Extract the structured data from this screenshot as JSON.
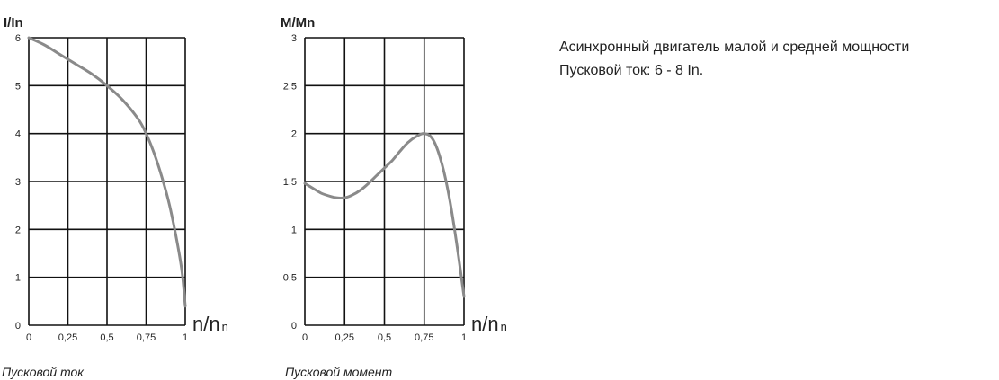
{
  "chart_data": [
    {
      "type": "line",
      "ylabel": "I/In",
      "xlabel_main": "n/n",
      "xlabel_sub": "n",
      "caption": "Пусковой ток",
      "x_ticks": [
        "0",
        "0,25",
        "0,5",
        "0,75",
        "1"
      ],
      "y_ticks": [
        "0",
        "1",
        "2",
        "3",
        "4",
        "5",
        "6"
      ],
      "xlim": [
        0,
        1
      ],
      "ylim": [
        0,
        6
      ],
      "grid": true,
      "series": [
        {
          "x": [
            0,
            0.1,
            0.2,
            0.3,
            0.4,
            0.5,
            0.6,
            0.7,
            0.75,
            0.8,
            0.85,
            0.9,
            0.95,
            0.98,
            1.0
          ],
          "y": [
            6.0,
            5.85,
            5.65,
            5.45,
            5.25,
            5.0,
            4.7,
            4.3,
            4.0,
            3.6,
            3.1,
            2.5,
            1.7,
            1.1,
            0.4
          ]
        }
      ]
    },
    {
      "type": "line",
      "ylabel": "M/Mn",
      "xlabel_main": "n/n",
      "xlabel_sub": "n",
      "caption": "Пусковой момент",
      "x_ticks": [
        "0",
        "0,25",
        "0,5",
        "0,75",
        "1"
      ],
      "y_ticks": [
        "0",
        "0,5",
        "1",
        "1,5",
        "2",
        "2,5",
        "3"
      ],
      "xlim": [
        0,
        1
      ],
      "ylim": [
        0,
        3
      ],
      "grid": true,
      "series": [
        {
          "x": [
            0,
            0.05,
            0.1,
            0.15,
            0.2,
            0.25,
            0.3,
            0.35,
            0.4,
            0.45,
            0.5,
            0.55,
            0.6,
            0.65,
            0.7,
            0.75,
            0.8,
            0.85,
            0.9,
            0.95,
            1.0
          ],
          "y": [
            1.48,
            1.43,
            1.38,
            1.35,
            1.33,
            1.33,
            1.36,
            1.41,
            1.48,
            1.56,
            1.64,
            1.72,
            1.82,
            1.91,
            1.97,
            2.0,
            1.95,
            1.75,
            1.4,
            0.9,
            0.3
          ]
        }
      ]
    }
  ],
  "description": {
    "line1": "Асинхронный двигатель малой и средней мощности",
    "line2": "Пусковой ток: 6 - 8 In."
  },
  "colors": {
    "curve": "#8a8a8a",
    "grid": "#111111",
    "text": "#222222"
  }
}
